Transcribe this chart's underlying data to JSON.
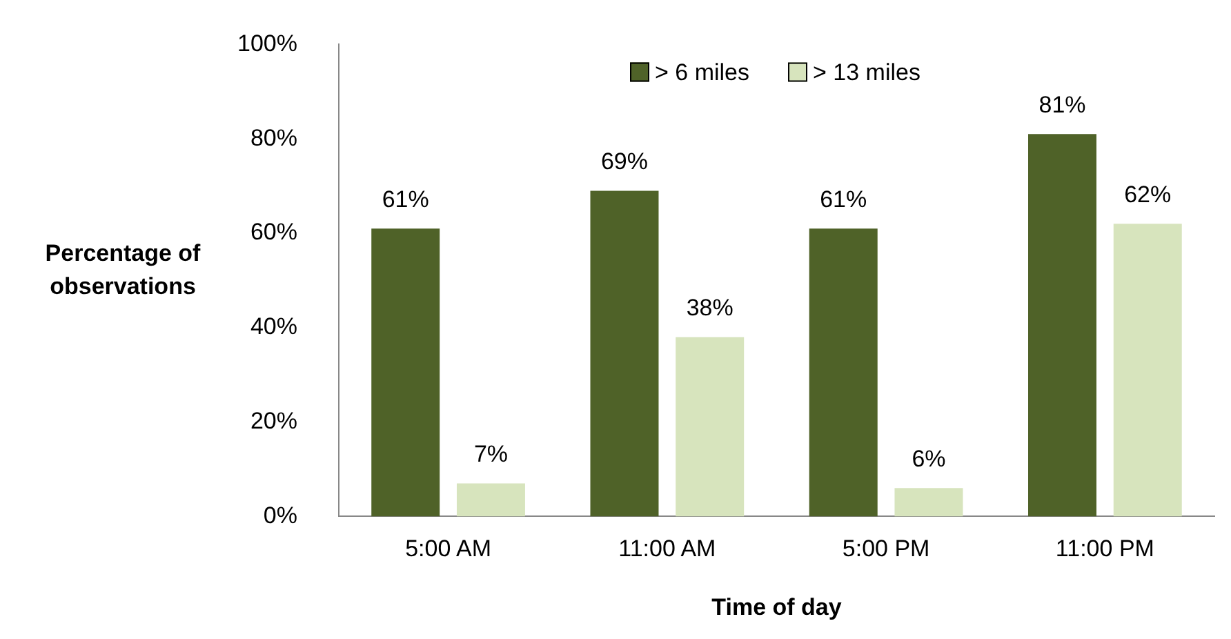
{
  "chart_data": {
    "type": "bar",
    "xlabel": "Time of day",
    "ylabel": "Percentage of observations",
    "categories": [
      "5:00 AM",
      "11:00 AM",
      "5:00 PM",
      "11:00 PM"
    ],
    "series": [
      {
        "name": "> 6 miles",
        "color": "#4f6228",
        "values": [
          61,
          69,
          61,
          81
        ]
      },
      {
        "name": "> 13 miles",
        "color": "#d7e4bd",
        "values": [
          7,
          38,
          6,
          62
        ]
      }
    ],
    "ylim": [
      0,
      100
    ],
    "yticks": [
      {
        "value": 0,
        "label": "0%"
      },
      {
        "value": 20,
        "label": "20%"
      },
      {
        "value": 40,
        "label": "40%"
      },
      {
        "value": 60,
        "label": "60%"
      },
      {
        "value": 80,
        "label": "80%"
      },
      {
        "value": 100,
        "label": "100%"
      }
    ],
    "value_labels": [
      [
        "61%",
        "69%",
        "61%",
        "81%"
      ],
      [
        "7%",
        "38%",
        "6%",
        "62%"
      ]
    ],
    "grid": false,
    "legend": "top"
  }
}
